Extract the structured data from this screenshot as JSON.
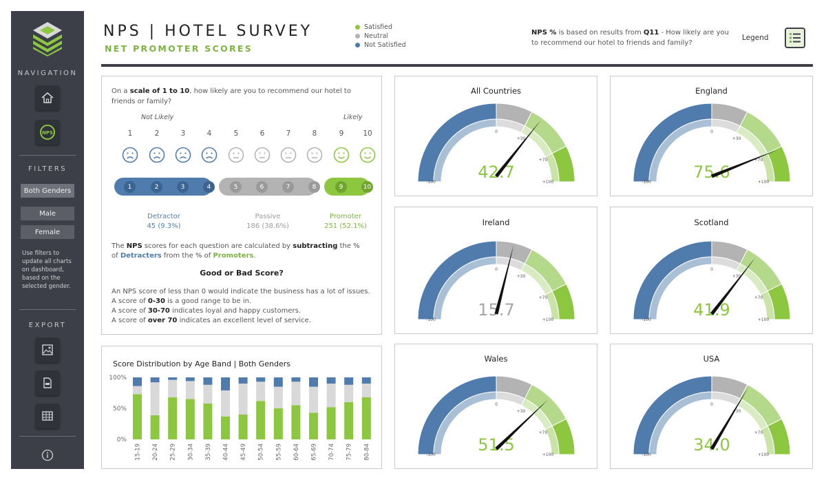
{
  "header": {
    "title": "NPS | HOTEL SURVEY",
    "subtitle": "NET PROMOTER SCORES",
    "legend": [
      {
        "label": "Satisfied",
        "color": "#8dc63f"
      },
      {
        "label": "Neutral",
        "color": "#b3b3b3"
      },
      {
        "label": "Not Satisfied",
        "color": "#4f7cac"
      }
    ],
    "nps_note": {
      "bold1": "NPS %",
      "text1": " is based on results from ",
      "bold2": "Q11",
      "text2": " - How likely are you to recommend our hotel to friends and family?"
    },
    "legend_button_label": "Legend"
  },
  "sidebar": {
    "navigation_heading": "NAVIGATION",
    "nps_button_label": "NPS",
    "filters_heading": "FILTERS",
    "filters": [
      "Both Genders",
      "Male",
      "Female"
    ],
    "active_filter": "Both Genders",
    "filter_note": "Use filters to update all charts on dashboard, based on the selected gender.",
    "export_heading": "EXPORT"
  },
  "question": {
    "prefix": "On a ",
    "bold": "scale of 1 to 10",
    "suffix": ", how likely are you to recommend our hotel to friends or family?",
    "not_likely": "Not Likely",
    "likely": "Likely",
    "scale": [
      "1",
      "2",
      "3",
      "4",
      "5",
      "6",
      "7",
      "8",
      "9",
      "10"
    ],
    "detractor": {
      "label": "Detractor",
      "value": "45 (9.3%)"
    },
    "passive": {
      "label": "Passive",
      "value": "186 (38.6%)"
    },
    "promoter": {
      "label": "Promoter",
      "value": "251 (52.1%)"
    },
    "explain": {
      "t1": "The ",
      "b1": "NPS",
      "t2": " scores for each question are calculated by ",
      "b2": "subtracting",
      "t3": " the % of ",
      "b3": "Detracters",
      "t4": " from the % of ",
      "b4": "Promoters",
      "t5": "."
    },
    "good_bad_heading": "Good or Bad Score?",
    "guide": {
      "l1": "An NPS score of less than 0 would indicate the business has a lot of issues.",
      "l2a": "A score of ",
      "l2b": "0-30",
      "l2c": " is a good range to be in.",
      "l3a": "A score of ",
      "l3b": "30-70",
      "l3c": " indicates loyal and happy customers.",
      "l4a": "A score of ",
      "l4b": "over 70",
      "l4c": " indicates an excellent level of service."
    }
  },
  "colors": {
    "promoter": "#8dc63f",
    "passive": "#b3b3b3",
    "detractor": "#4f7cac"
  },
  "chart_data": [
    {
      "type": "bar",
      "title": "Score Distribution by Age Band",
      "filter_label": "Both Genders",
      "separator": "|",
      "categories": [
        "15-19",
        "20-24",
        "25-29",
        "30-34",
        "35-39",
        "40-44",
        "45-49",
        "50-54",
        "55-59",
        "60-64",
        "65-69",
        "70-74",
        "75-79",
        "80-84"
      ],
      "yticks": [
        "100%",
        "50%",
        "0%"
      ],
      "ylim": [
        0,
        100
      ],
      "series": [
        {
          "name": "Promoter",
          "values": [
            73,
            39,
            68,
            65,
            58,
            37,
            40,
            62,
            50,
            55,
            43,
            52,
            60,
            68
          ]
        },
        {
          "name": "Passive",
          "values": [
            13,
            53,
            28,
            29,
            30,
            42,
            50,
            31,
            35,
            38,
            42,
            38,
            28,
            22
          ]
        },
        {
          "name": "Detractor",
          "values": [
            14,
            8,
            4,
            6,
            12,
            21,
            10,
            7,
            15,
            7,
            15,
            10,
            12,
            10
          ]
        }
      ]
    },
    {
      "type": "gauge",
      "title": "All Countries",
      "value": 42.7,
      "range": [
        -100,
        100
      ],
      "ticks": [
        "-100",
        "0",
        "+30",
        "+70",
        "+100"
      ]
    },
    {
      "type": "gauge",
      "title": "England",
      "value": 75.6,
      "range": [
        -100,
        100
      ],
      "ticks": [
        "-100",
        "0",
        "+30",
        "+70",
        "+100"
      ]
    },
    {
      "type": "gauge",
      "title": "Ireland",
      "value": 15.7,
      "range": [
        -100,
        100
      ],
      "ticks": [
        "-100",
        "0",
        "+30",
        "+70",
        "+100"
      ]
    },
    {
      "type": "gauge",
      "title": "Scotland",
      "value": 41.9,
      "range": [
        -100,
        100
      ],
      "ticks": [
        "-100",
        "0",
        "+30",
        "+70",
        "+100"
      ]
    },
    {
      "type": "gauge",
      "title": "Wales",
      "value": 51.5,
      "range": [
        -100,
        100
      ],
      "ticks": [
        "-100",
        "0",
        "+30",
        "+70",
        "+100"
      ]
    },
    {
      "type": "gauge",
      "title": "USA",
      "value": 34.0,
      "range": [
        -100,
        100
      ],
      "ticks": [
        "-100",
        "0",
        "+30",
        "+70",
        "+100"
      ]
    }
  ]
}
